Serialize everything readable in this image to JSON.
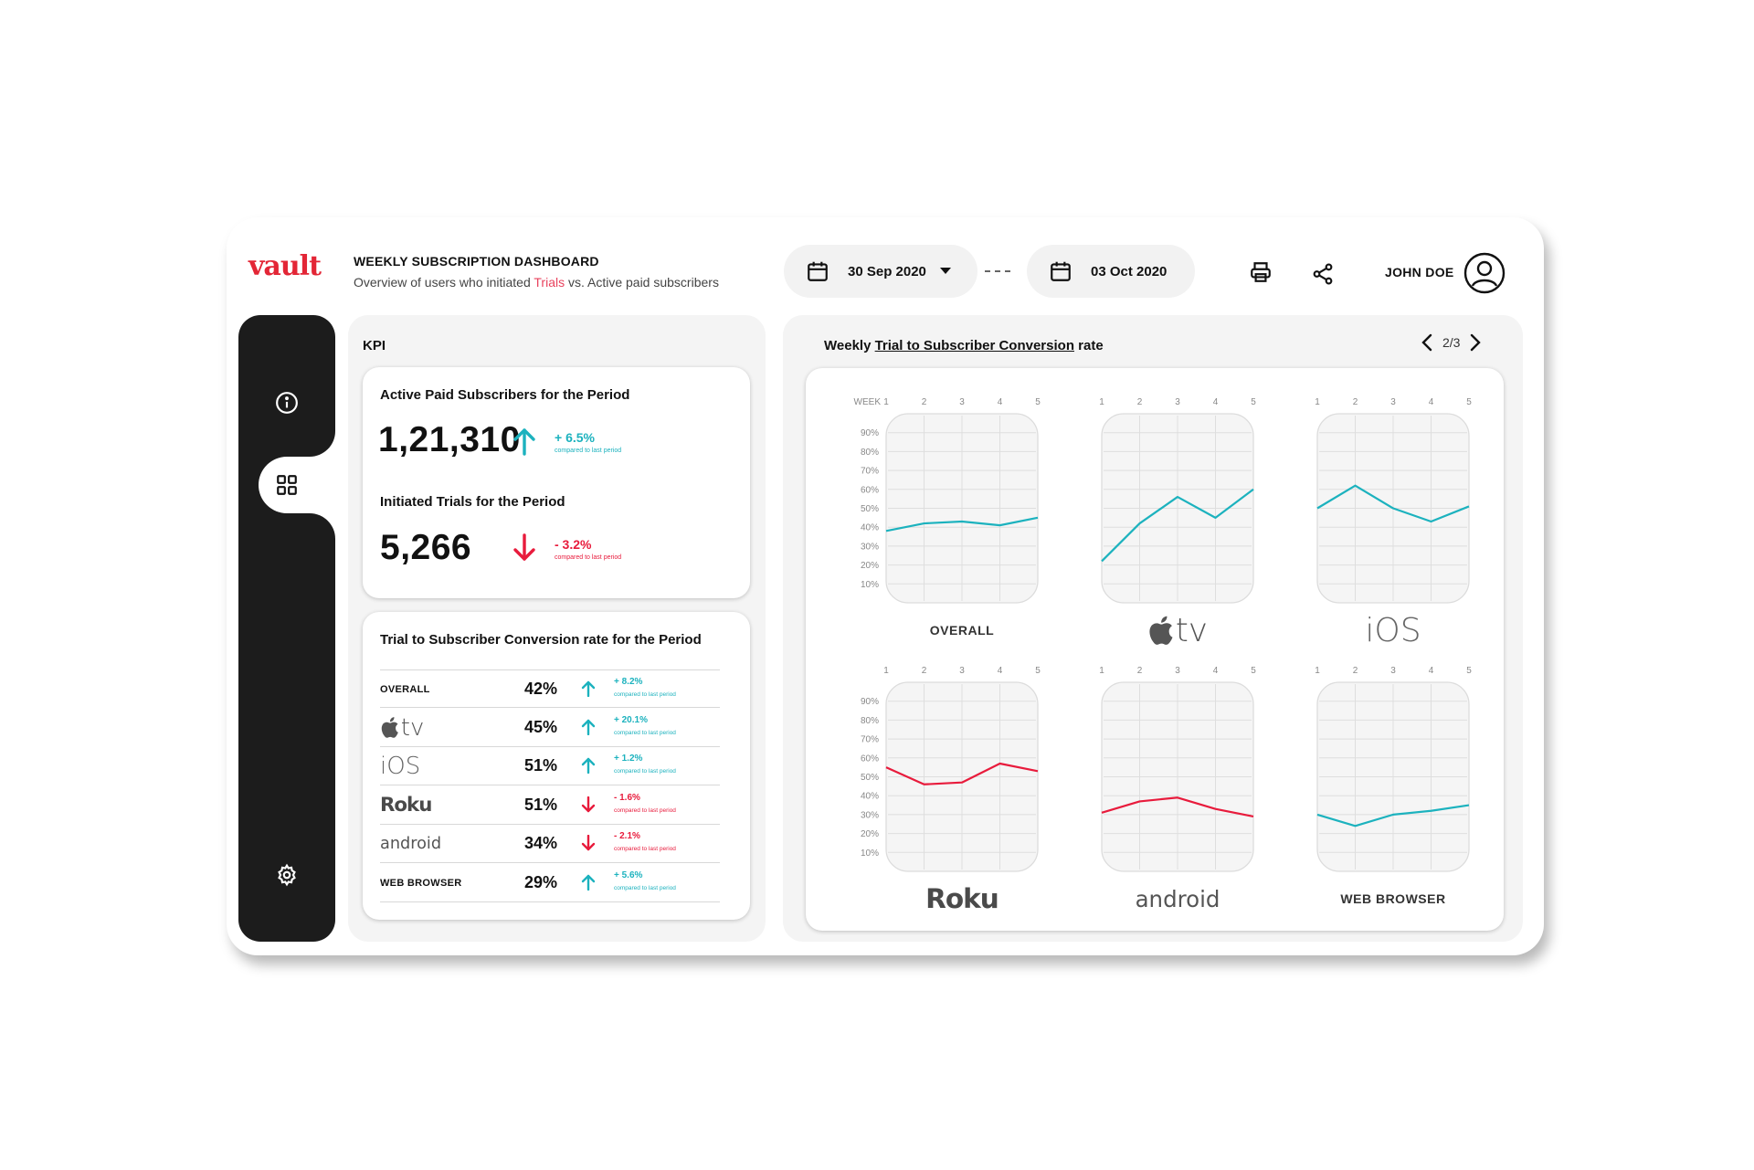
{
  "brand": {
    "logo_text": "vault",
    "accent_color": "#e32636"
  },
  "header": {
    "title": "WEEKLY SUBSCRIPTION DASHBOARD",
    "subtitle_before": "Overview of users who initiated ",
    "subtitle_highlight": "Trials",
    "subtitle_after": " vs. Active paid subscribers",
    "start_date": "30 Sep 2020",
    "end_date": "03 Oct 2020",
    "date_separator": "- - - -",
    "user_name": "JOHN DOE",
    "icons": [
      "calendar-icon",
      "chevron-down-icon",
      "printer-icon",
      "share-icon",
      "user-avatar-icon"
    ]
  },
  "sidebar": {
    "items": [
      "info-icon",
      "dashboard-grid-icon",
      "settings-gear-icon"
    ],
    "active": "dashboard-grid-icon"
  },
  "kpi": {
    "section_title": "KPI",
    "active_paid": {
      "label": "Active Paid Subscribers for the Period",
      "value": "1,21,310",
      "change": "+ 6.5%",
      "note": "compared to last period",
      "direction": "up"
    },
    "initiated_trials": {
      "label": "Initiated Trials for the Period",
      "value": "5,266",
      "change": "- 3.2%",
      "note": "compared to last period",
      "direction": "down"
    }
  },
  "conversion": {
    "title": "Trial to Subscriber Conversion rate for the Period",
    "rows": [
      {
        "name": "OVERALL",
        "logo": "text",
        "pct": "42%",
        "change": "+ 8.2%",
        "note": "compared to last period",
        "direction": "up"
      },
      {
        "name": "tv",
        "logo": "appletv",
        "pct": "45%",
        "change": "+ 20.1%",
        "note": "compared to last period",
        "direction": "up"
      },
      {
        "name": "iOS",
        "logo": "ios",
        "pct": "51%",
        "change": "+ 1.2%",
        "note": "compared to last period",
        "direction": "up"
      },
      {
        "name": "Roku",
        "logo": "roku",
        "pct": "51%",
        "change": "- 1.6%",
        "note": "compared to last period",
        "direction": "down"
      },
      {
        "name": "android",
        "logo": "android",
        "pct": "34%",
        "change": "- 2.1%",
        "note": "compared to last period",
        "direction": "down"
      },
      {
        "name": "WEB BROWSER",
        "logo": "text",
        "pct": "29%",
        "change": "+ 5.6%",
        "note": "compared to last period",
        "direction": "up"
      }
    ]
  },
  "weekly": {
    "title_before": "Weekly ",
    "title_link": "Trial to Subscriber Conversion",
    "title_after": " rate",
    "pager": "2/3"
  },
  "chart_data": [
    {
      "type": "line",
      "title": "OVERALL",
      "logo": "text",
      "x_axis_label": "WEEK",
      "x": [
        1,
        2,
        3,
        4,
        5
      ],
      "y_ticks": [
        "90%",
        "80%",
        "70%",
        "60%",
        "50%",
        "40%",
        "30%",
        "20%",
        "10%"
      ],
      "ylim": [
        0,
        100
      ],
      "values": [
        38,
        42,
        43,
        41,
        45
      ],
      "color": "#1cb2be"
    },
    {
      "type": "line",
      "title": "tv",
      "logo": "appletv",
      "x": [
        1,
        2,
        3,
        4,
        5
      ],
      "ylim": [
        0,
        100
      ],
      "values": [
        22,
        42,
        56,
        45,
        60
      ],
      "color": "#1cb2be"
    },
    {
      "type": "line",
      "title": "iOS",
      "logo": "ios",
      "x": [
        1,
        2,
        3,
        4,
        5
      ],
      "ylim": [
        0,
        100
      ],
      "values": [
        50,
        62,
        50,
        43,
        51
      ],
      "color": "#1cb2be"
    },
    {
      "type": "line",
      "title": "Roku",
      "logo": "roku",
      "x": [
        1,
        2,
        3,
        4,
        5
      ],
      "y_ticks": [
        "90%",
        "80%",
        "70%",
        "60%",
        "50%",
        "40%",
        "30%",
        "20%",
        "10%"
      ],
      "ylim": [
        0,
        100
      ],
      "values": [
        55,
        46,
        47,
        57,
        53
      ],
      "color": "#e81b3c"
    },
    {
      "type": "line",
      "title": "android",
      "logo": "android",
      "x": [
        1,
        2,
        3,
        4,
        5
      ],
      "ylim": [
        0,
        100
      ],
      "values": [
        31,
        37,
        39,
        33,
        29
      ],
      "color": "#e81b3c"
    },
    {
      "type": "line",
      "title": "WEB BROWSER",
      "logo": "text",
      "x": [
        1,
        2,
        3,
        4,
        5
      ],
      "ylim": [
        0,
        100
      ],
      "values": [
        30,
        24,
        30,
        32,
        35
      ],
      "color": "#1cb2be"
    }
  ]
}
